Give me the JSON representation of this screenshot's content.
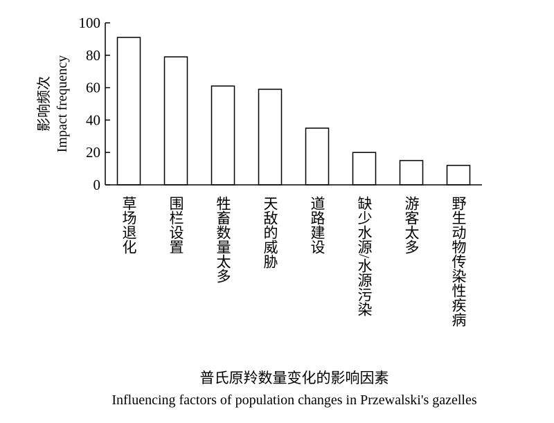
{
  "chart_data": {
    "type": "bar",
    "ylabel_cn": "影响频次",
    "ylabel_en": "Impact frequency",
    "xlabel_cn": "普氏原羚数量变化的影响因素",
    "xlabel_en": "Influencing factors of population changes in Przewalski's gazelles",
    "categories": [
      "草场退化",
      "围栏设置",
      "牲畜数量太多",
      "天敌的威胁",
      "道路建设",
      "缺少水源/水源污染",
      "游客太多",
      "野生动物传染性疾病"
    ],
    "values": [
      91,
      79,
      61,
      59,
      35,
      20,
      15,
      12
    ],
    "ylim": [
      0,
      100
    ],
    "yticks": [
      0,
      20,
      40,
      60,
      80,
      100
    ],
    "grid": false,
    "bar_fill": "#ffffff",
    "bar_stroke": "#000000"
  }
}
